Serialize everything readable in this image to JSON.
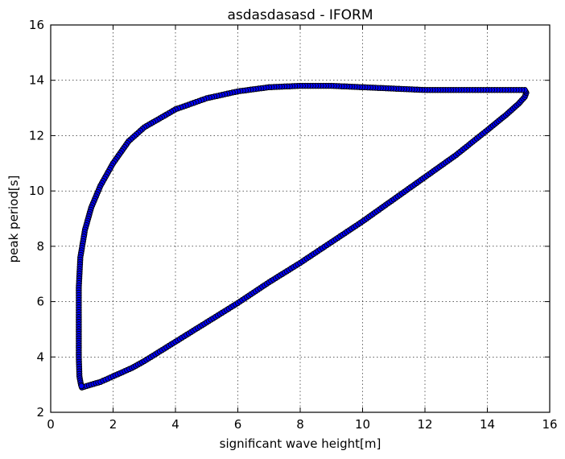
{
  "chart_data": {
    "type": "scatter",
    "title": "asdasdasasd - IFORM",
    "xlabel": "significant wave height[m]",
    "ylabel": "peak period[s]",
    "xlim": [
      0,
      16
    ],
    "ylim": [
      2,
      16
    ],
    "xticks": [
      "0",
      "2",
      "4",
      "6",
      "8",
      "10",
      "12",
      "14",
      "16"
    ],
    "yticks": [
      "2",
      "4",
      "6",
      "8",
      "10",
      "12",
      "14",
      "16"
    ],
    "grid": true,
    "marker_color": "#0000ff",
    "marker_edge_color": "#000000",
    "contour_vertices": [
      [
        1.0,
        2.9
      ],
      [
        1.3,
        3.0
      ],
      [
        1.6,
        3.1
      ],
      [
        2.0,
        3.3
      ],
      [
        2.6,
        3.6
      ],
      [
        3.0,
        3.85
      ],
      [
        4.0,
        4.55
      ],
      [
        5.0,
        5.25
      ],
      [
        6.0,
        5.95
      ],
      [
        7.0,
        6.7
      ],
      [
        8.0,
        7.4
      ],
      [
        9.0,
        8.15
      ],
      [
        10.0,
        8.9
      ],
      [
        11.0,
        9.7
      ],
      [
        12.0,
        10.5
      ],
      [
        13.0,
        11.3
      ],
      [
        14.0,
        12.2
      ],
      [
        14.6,
        12.75
      ],
      [
        15.0,
        13.15
      ],
      [
        15.2,
        13.4
      ],
      [
        15.25,
        13.55
      ],
      [
        15.2,
        13.65
      ],
      [
        14.5,
        13.65
      ],
      [
        13.0,
        13.65
      ],
      [
        12.0,
        13.65
      ],
      [
        11.0,
        13.7
      ],
      [
        10.0,
        13.75
      ],
      [
        9.0,
        13.8
      ],
      [
        8.0,
        13.8
      ],
      [
        7.0,
        13.75
      ],
      [
        6.0,
        13.6
      ],
      [
        5.0,
        13.35
      ],
      [
        4.0,
        12.95
      ],
      [
        3.0,
        12.3
      ],
      [
        2.5,
        11.8
      ],
      [
        2.0,
        11.0
      ],
      [
        1.6,
        10.2
      ],
      [
        1.3,
        9.4
      ],
      [
        1.1,
        8.6
      ],
      [
        0.95,
        7.6
      ],
      [
        0.9,
        6.5
      ],
      [
        0.9,
        5.0
      ],
      [
        0.9,
        4.0
      ],
      [
        0.92,
        3.3
      ],
      [
        0.97,
        3.0
      ],
      [
        1.0,
        2.9
      ]
    ],
    "sample_spacing": 0.09
  }
}
